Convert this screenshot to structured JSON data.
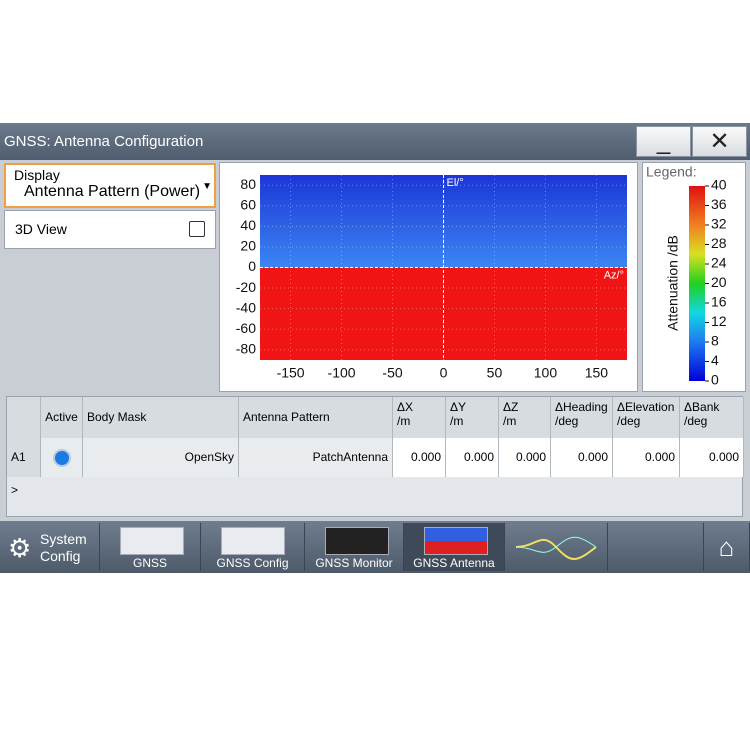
{
  "window": {
    "title": "GNSS: Antenna Configuration"
  },
  "display": {
    "label": "Display",
    "value": "Antenna Pattern (Power)"
  },
  "view_3d": {
    "label": "3D View"
  },
  "chart_data": {
    "type": "heatmap",
    "xlim": [
      -180,
      180
    ],
    "ylim": [
      -90,
      90
    ],
    "xticks": [
      -150,
      -100,
      -50,
      0,
      50,
      100,
      150
    ],
    "yticks": [
      -80,
      -60,
      -40,
      -20,
      0,
      20,
      40,
      60,
      80
    ],
    "x_axis_label": "Az/°",
    "y_axis_label": "El/°",
    "legend_title": "Legend:",
    "colorbar_label": "Attenuation /dB",
    "colorbar_lim": [
      0,
      40
    ],
    "colorbar_ticks": [
      0,
      4,
      8,
      12,
      16,
      20,
      24,
      28,
      32,
      36,
      40
    ]
  },
  "table": {
    "headers": [
      "Active",
      "Body Mask",
      "Antenna Pattern",
      "ΔX\n/m",
      "ΔY\n/m",
      "ΔZ\n/m",
      "ΔHeading\n/deg",
      "ΔElevation\n/deg",
      "ΔBank\n/deg"
    ],
    "rows": [
      {
        "label": "A1 >",
        "body_mask": "OpenSky",
        "antenna_pattern": "PatchAntenna",
        "values": [
          "0.000",
          "0.000",
          "0.000",
          "0.000",
          "0.000",
          "0.000"
        ]
      }
    ]
  },
  "taskbar": {
    "system_config": "System\nConfig",
    "tabs": [
      "GNSS",
      "GNSS Config",
      "GNSS Monitor",
      "GNSS Antenna"
    ]
  }
}
